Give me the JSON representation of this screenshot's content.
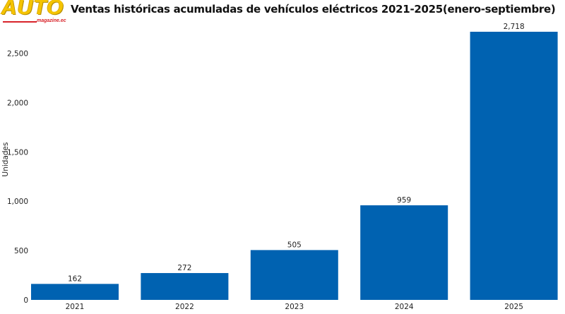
{
  "logo": {
    "main": "AUTO",
    "sub": "magazine.ec"
  },
  "chart_data": {
    "type": "bar",
    "title": "Ventas históricas acumuladas de vehículos eléctricos 2021-2025(enero-septiembre)",
    "xlabel": "",
    "ylabel": "Unidades",
    "categories": [
      "2021",
      "2022",
      "2023",
      "2024",
      "2025"
    ],
    "values": [
      162,
      272,
      505,
      959,
      2718
    ],
    "data_labels": [
      "162",
      "272",
      "505",
      "959",
      "2,718"
    ],
    "yticks": [
      0,
      500,
      1000,
      1500,
      2000,
      2500
    ],
    "ytick_labels": [
      "0",
      "500",
      "1,000",
      "1,500",
      "2,000",
      "2,500"
    ],
    "ylim": [
      0,
      2718
    ],
    "grid": false,
    "legend": "none",
    "colors": {
      "bar": "#0062b1"
    }
  }
}
